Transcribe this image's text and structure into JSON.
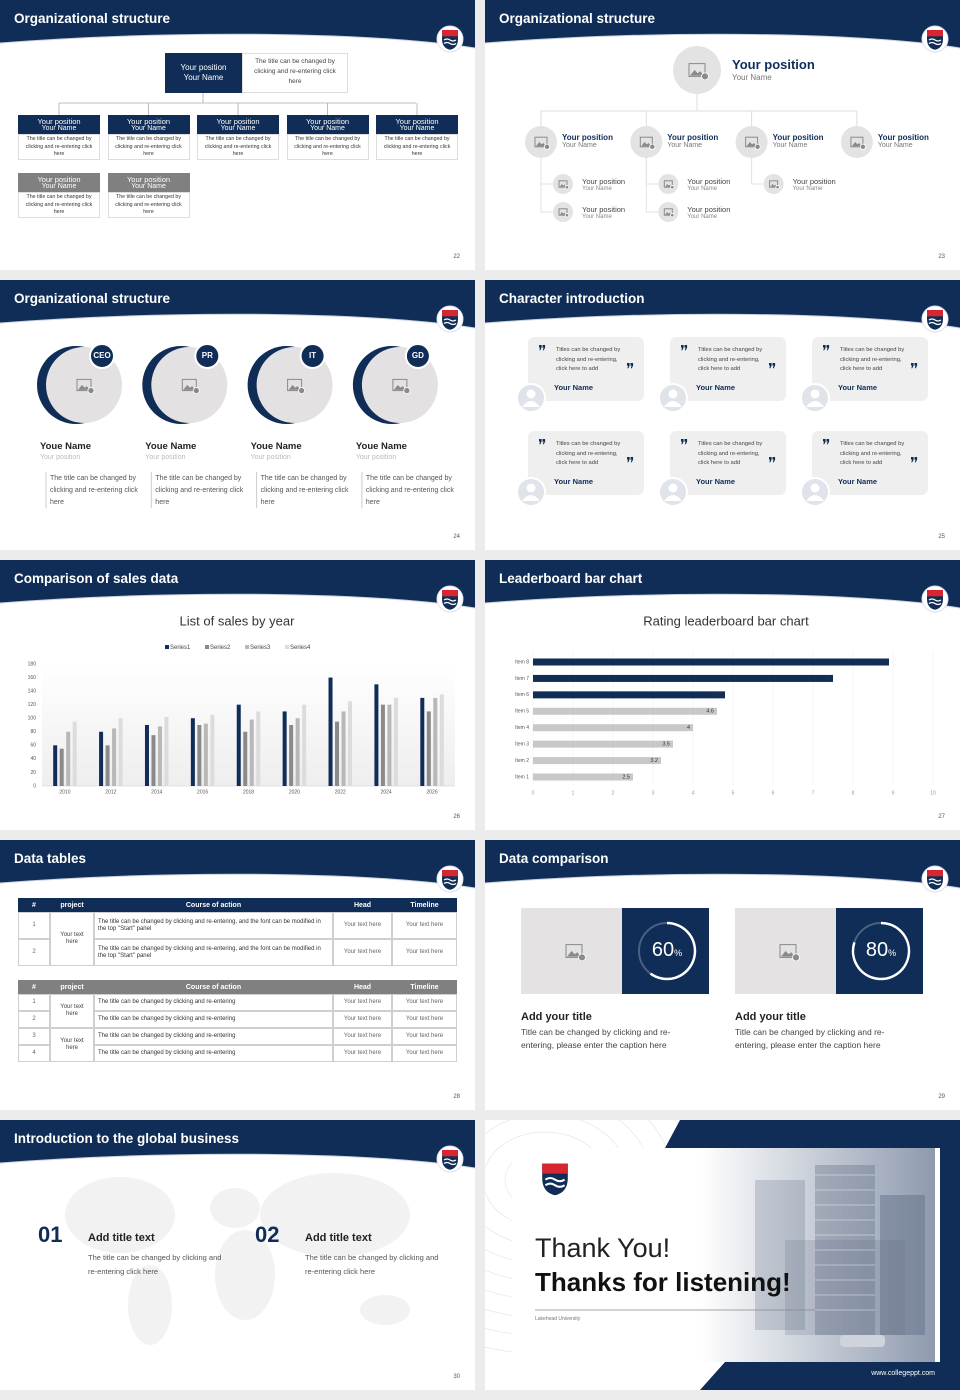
{
  "slides": [
    {
      "title": "Organizational structure",
      "page": 22,
      "top": {
        "position": "Your position",
        "name": "Your Name",
        "note": "The title can be changed by clicking and re-entering click here"
      },
      "members": [
        {
          "position": "Your position",
          "name": "Your Name",
          "text": "The title can be changed by clicking and re-entering click here"
        },
        {
          "position": "Your position",
          "name": "Your Name",
          "text": "The title can be changed by clicking and re-entering click here"
        },
        {
          "position": "Your position",
          "name": "Your Name",
          "text": "The title can be changed by clicking and re-entering click here"
        },
        {
          "position": "Your position",
          "name": "Your Name",
          "text": "The title can be changed by clicking and re-entering click here"
        },
        {
          "position": "Your position",
          "name": "Your Name",
          "text": "The title can be changed by clicking and re-entering click here"
        }
      ],
      "sub_members": [
        {
          "position": "Your position",
          "name": "Your Name",
          "text": "The title can be changed by clicking and re-entering click here"
        },
        {
          "position": "Your position",
          "name": "Your Name",
          "text": "The title can be changed by clicking and re-entering click here"
        }
      ]
    },
    {
      "title": "Organizational structure",
      "page": 23,
      "top": {
        "position": "Your position",
        "name": "Your Name"
      },
      "columns": [
        {
          "position": "Your position",
          "name": "Your Name",
          "children": [
            {
              "position": "Your position",
              "name": "Your Name"
            },
            {
              "position": "Your position",
              "name": "Your Name"
            }
          ]
        },
        {
          "position": "Your position",
          "name": "Your Name",
          "children": [
            {
              "position": "Your position",
              "name": "Your Name"
            },
            {
              "position": "Your position",
              "name": "Your Name"
            }
          ]
        },
        {
          "position": "Your position",
          "name": "Your Name",
          "children": [
            {
              "position": "Your position",
              "name": "Your Name"
            }
          ]
        },
        {
          "position": "Your position",
          "name": "Your Name"
        }
      ]
    },
    {
      "title": "Organizational structure",
      "page": 24,
      "people": [
        {
          "badge": "CEO",
          "name": "Youe Name",
          "position": "Your position",
          "text": "The title can be changed by clicking and re-entering click here"
        },
        {
          "badge": "PR",
          "name": "Youe Name",
          "position": "Your position",
          "text": "The title can be changed by clicking and re-entering click here"
        },
        {
          "badge": "IT",
          "name": "Youe Name",
          "position": "Your position",
          "text": "The title can be changed by clicking and re-entering click here"
        },
        {
          "badge": "GD",
          "name": "Youe Name",
          "position": "Your position",
          "text": "The title can be changed by clicking and re-entering click here"
        }
      ]
    },
    {
      "title": "Character introduction",
      "page": 25,
      "quotes": [
        {
          "text": "Titles can be changed by clicking and re-entering, click here to add",
          "name": "Your Name"
        },
        {
          "text": "Titles can be changed by clicking and re-entering, click here to add",
          "name": "Your Name"
        },
        {
          "text": "Titles can be changed by clicking and re-entering, click here to add",
          "name": "Your Name"
        },
        {
          "text": "Titles can be changed by clicking and re-entering, click here to add",
          "name": "Your Name"
        },
        {
          "text": "Titles can be changed by clicking and re-entering, click here to add",
          "name": "Your Name"
        },
        {
          "text": "Titles can be changed by clicking and re-entering, click here to add",
          "name": "Your Name"
        }
      ]
    },
    {
      "title": "Comparison of sales data",
      "page": 26,
      "chart": {
        "type": "bar",
        "title": "List of sales by year",
        "categories": [
          "2010",
          "2012",
          "2014",
          "2016",
          "2018",
          "2020",
          "2022",
          "2024",
          "2026"
        ],
        "series": [
          {
            "name": "Series1",
            "color": "#0f2d57",
            "values": [
              60,
              80,
              90,
              100,
              120,
              110,
              160,
              150,
              130
            ]
          },
          {
            "name": "Series2",
            "color": "#8a8a8a",
            "values": [
              55,
              60,
              75,
              90,
              80,
              90,
              95,
              120,
              110
            ]
          },
          {
            "name": "Series3",
            "color": "#b8b8b8",
            "values": [
              80,
              85,
              88,
              92,
              98,
              100,
              110,
              120,
              130
            ]
          },
          {
            "name": "Series4",
            "color": "#dcdcdc",
            "values": [
              95,
              100,
              102,
              105,
              110,
              120,
              125,
              130,
              135
            ]
          }
        ],
        "ylim": [
          0,
          180
        ],
        "yticks": [
          0,
          20,
          40,
          60,
          80,
          100,
          120,
          140,
          160,
          180
        ],
        "grid": false
      }
    },
    {
      "title": "Leaderboard bar chart",
      "page": 27,
      "chart": {
        "type": "hbar",
        "title": "Rating leaderboard bar chart",
        "categories": [
          "Item 1",
          "Item 2",
          "Item 3",
          "Item 4",
          "Item 5",
          "Item 6",
          "Item 7",
          "Item 8"
        ],
        "values": [
          2.5,
          3.2,
          3.5,
          4,
          4.6,
          4.8,
          7.5,
          8.9
        ],
        "colors": [
          "#c8c8c8",
          "#c8c8c8",
          "#c8c8c8",
          "#c8c8c8",
          "#c8c8c8",
          "#0f2d57",
          "#0f2d57",
          "#0f2d57"
        ],
        "xlim": [
          0,
          10
        ],
        "xticks": [
          0,
          1,
          2,
          3,
          4,
          5,
          6,
          7,
          8,
          9,
          10
        ],
        "grid": true
      }
    },
    {
      "title": "Data tables",
      "page": 28,
      "tables": [
        {
          "header": [
            "#",
            "project",
            "Course of action",
            "Head",
            "Timeline"
          ],
          "groups": [
            {
              "project": "Your text here",
              "rows": [
                [
                  "1",
                  "The title can be changed by clicking and re-entering, and the font can be modified in the top \"Start\" panel",
                  "Your text here",
                  "Your text here"
                ],
                [
                  "2",
                  "The title can be changed by clicking and re-entering, and the font can be modified in the top \"Start\" panel",
                  "Your text here",
                  "Your text here"
                ]
              ]
            }
          ]
        },
        {
          "header": [
            "#",
            "project",
            "Course of action",
            "Head",
            "Timeline"
          ],
          "groups": [
            {
              "project": "Your text here",
              "rows": [
                [
                  "1",
                  "The title can be changed by clicking and re-entering",
                  "Your text here",
                  "Your text here"
                ],
                [
                  "2",
                  "The title can be changed by clicking and re-entering",
                  "Your text here",
                  "Your text here"
                ]
              ]
            },
            {
              "project": "Your text here",
              "rows": [
                [
                  "3",
                  "The title can be changed by clicking and re-entering",
                  "Your text here",
                  "Your text here"
                ],
                [
                  "4",
                  "The title can be changed by clicking and re-entering",
                  "Your text here",
                  "Your text here"
                ]
              ]
            }
          ]
        }
      ]
    },
    {
      "title": "Data comparison",
      "page": 29,
      "cards": [
        {
          "percent": {
            "value": 60,
            "unit": "%"
          },
          "title": "Add your title",
          "text": "Title can be changed by clicking and re-entering, please enter the caption here"
        },
        {
          "percent": {
            "value": 80,
            "unit": "%"
          },
          "title": "Add your title",
          "text": "Title can be changed by clicking and re-entering, please enter the caption here"
        }
      ]
    },
    {
      "title": "Introduction to the global business",
      "page": 30,
      "items": [
        {
          "number": "01",
          "title": "Add title text",
          "text": "The title can be changed by clicking and re-entering click here"
        },
        {
          "number": "02",
          "title": "Add title text",
          "text": "The title can be changed by clicking and re-entering click here"
        }
      ]
    },
    {
      "line1": "Thank You!",
      "line2": "Thanks for listening!",
      "caption": "Lakehead University",
      "url": "www.collegeppt.com"
    }
  ]
}
